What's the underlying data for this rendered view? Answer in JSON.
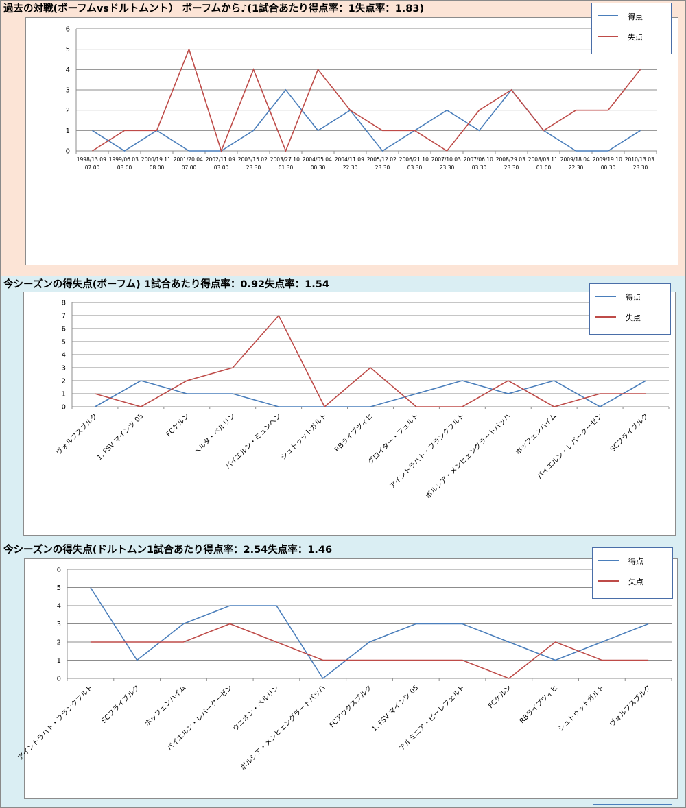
{
  "colors": {
    "goals": "#4a7ebb",
    "conceded": "#be4b48",
    "grid": "#8c8c8c"
  },
  "charts": [
    {
      "title": "過去の対戦(ボーフムvsドルトムント） ボーフムから♪(1試合あたり得点率：1失点率：1.83)",
      "legend": [
        "得点",
        "失点"
      ],
      "chart_data": {
        "type": "line",
        "categories": [
          "1998/13.09.|07:00",
          "1999/06.03.|08:00",
          "2000/19.11.|08:00",
          "2001/20.04.|07:00",
          "2002/11.09.|03:00",
          "2003/15.02.|23:30",
          "2003/27.10.|01:30",
          "2004/05.04.|00:30",
          "2004/11.09.|22:30",
          "2005/12.02.|23:30",
          "2006/21.10.|03:30",
          "2007/10.03.|23:30",
          "2007/06.10.|03:30",
          "2008/29.03.|23:30",
          "2008/03.11.|01:00",
          "2009/18.04.|22:30",
          "2009/19.10.|00:30",
          "2010/13.03.|23:30"
        ],
        "series": [
          {
            "name": "得点",
            "values": [
              1,
              0,
              1,
              0,
              0,
              1,
              3,
              1,
              2,
              0,
              1,
              2,
              1,
              3,
              1,
              0,
              0,
              1
            ]
          },
          {
            "name": "失点",
            "values": [
              0,
              1,
              1,
              5,
              0,
              4,
              0,
              4,
              2,
              1,
              1,
              0,
              2,
              3,
              1,
              2,
              2,
              4
            ]
          }
        ],
        "ylim": [
          0,
          6
        ],
        "yticks": [
          "0",
          "1",
          "2",
          "3",
          "4",
          "5",
          "6"
        ],
        "grid": true,
        "legend_position": "top-right"
      }
    },
    {
      "title": "今シーズンの得失点(ボーフム) 1試合あたり得点率：0.92失点率：1.54",
      "legend": [
        "得点",
        "失点"
      ],
      "chart_data": {
        "type": "line",
        "categories": [
          "ヴォルフスブルク",
          "1. FSV マインツ 05",
          "FCケルン",
          "ヘルタ・ベルリン",
          "バイエルン・ミュンヘン",
          "シュトゥットガルト",
          "RBライプツィヒ",
          "グロイター・フュルト",
          "アイントラハト・フランクフルト",
          "ボルシア・メンヒェングラートバッハ",
          "ホッフェンハイム",
          "バイエルン・レバークーゼン",
          "SCフライブルク"
        ],
        "series": [
          {
            "name": "得点",
            "values": [
              0,
              2,
              1,
              1,
              0,
              0,
              0,
              1,
              2,
              1,
              2,
              0,
              2
            ]
          },
          {
            "name": "失点",
            "values": [
              1,
              0,
              2,
              3,
              7,
              0,
              3,
              0,
              0,
              2,
              0,
              1,
              1
            ]
          }
        ],
        "ylim": [
          0,
          8
        ],
        "yticks": [
          "0",
          "1",
          "2",
          "3",
          "4",
          "5",
          "6",
          "7",
          "8"
        ],
        "grid": true,
        "legend_position": "top-right"
      }
    },
    {
      "title": "今シーズンの得失点(ドルトムン1試合あたり得点率：2.54失点率：1.46",
      "legend": [
        "得点",
        "失点"
      ],
      "chart_data": {
        "type": "line",
        "categories": [
          "アイントラハト・フランクフルト",
          "SCフライブルク",
          "ホッフェンハイム",
          "バイエルン・レバークーゼン",
          "ウニオン・ベルリン",
          "ボルシア・メンヒェングラートバッハ",
          "FCアウクスブルク",
          "1. FSV マインツ 05",
          "アルミニア・ビーレフェルト",
          "FCケルン",
          "RBライプツィヒ",
          "シュトゥットガルト",
          "ヴォルフスブルク"
        ],
        "series": [
          {
            "name": "得点",
            "values": [
              5,
              1,
              3,
              4,
              4,
              0,
              2,
              3,
              3,
              2,
              1,
              2,
              3
            ]
          },
          {
            "name": "失点",
            "values": [
              2,
              2,
              2,
              3,
              2,
              1,
              1,
              1,
              1,
              0,
              2,
              1,
              1
            ]
          }
        ],
        "ylim": [
          0,
          6
        ],
        "yticks": [
          "0",
          "1",
          "2",
          "3",
          "4",
          "5",
          "6"
        ],
        "grid": true,
        "legend_position": "top-right"
      }
    }
  ]
}
